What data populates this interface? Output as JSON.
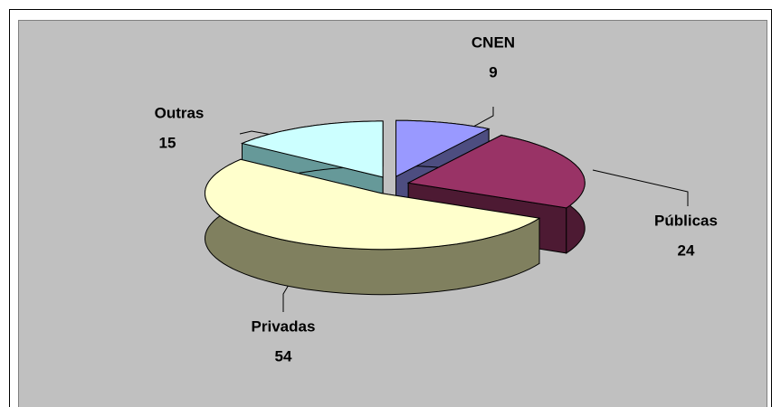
{
  "chart_data": {
    "type": "pie",
    "categories": [
      "CNEN",
      "Públicas",
      "Privadas",
      "Outras"
    ],
    "values": [
      9,
      24,
      54,
      15
    ],
    "colors": [
      "#9999ff",
      "#993366",
      "#ffffcc",
      "#ccffff"
    ],
    "side_colors": [
      "#4d4d80",
      "#4d1a33",
      "#80805f",
      "#669999"
    ],
    "three_d": true,
    "exploded": true
  }
}
